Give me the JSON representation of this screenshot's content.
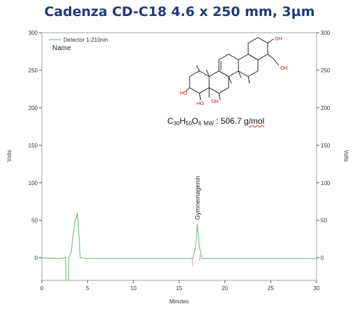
{
  "title": "Cadenza CD-C18 4.6 x 250 mm, 3µm",
  "colors": {
    "title": "#1f3a7a",
    "trace": "#7fbf8f",
    "axis": "#555555"
  },
  "chart_data": {
    "type": "line",
    "xlabel": "Minutes",
    "ylabel": "Volts",
    "ylabel_right": "Volts",
    "xlim": [
      0,
      30
    ],
    "ylim": [
      -30,
      300
    ],
    "x_ticks": [
      "0",
      "5",
      "10",
      "15",
      "20",
      "25",
      "30"
    ],
    "y_ticks": [
      "0",
      "50",
      "100",
      "150",
      "200",
      "250",
      "300"
    ],
    "legend": {
      "entry": "Detector 1-210nm",
      "name_label": "Name",
      "placement": "top-left"
    },
    "series": [
      {
        "name": "Detector 1-210nm",
        "x": [
          0,
          2.0,
          2.4,
          2.6,
          2.65,
          2.9,
          2.95,
          3.2,
          3.6,
          3.9,
          4.0,
          4.2,
          5.0,
          8,
          12,
          16.5,
          16.8,
          17.0,
          17.2,
          17.5,
          18,
          22,
          26,
          30
        ],
        "y": [
          0,
          -1,
          0,
          1,
          -30,
          -30,
          0,
          8,
          48,
          60,
          40,
          0,
          -1,
          -1,
          -1,
          -1,
          15,
          45,
          15,
          -1,
          -1,
          -1,
          -1,
          -1
        ]
      }
    ],
    "annotations": [
      {
        "text": "Gymnemagenin",
        "x": 17.0,
        "y": 45
      }
    ],
    "formula": {
      "text": "C30H50O6 MW : 506.7 g/mol",
      "c": "C",
      "c_sub": "30",
      "h": "H",
      "h_sub": "50",
      "o": "O",
      "o_sub": "6",
      "mw": "MW",
      "mass": " : 506.7 ",
      "unit": "g/mol"
    }
  }
}
